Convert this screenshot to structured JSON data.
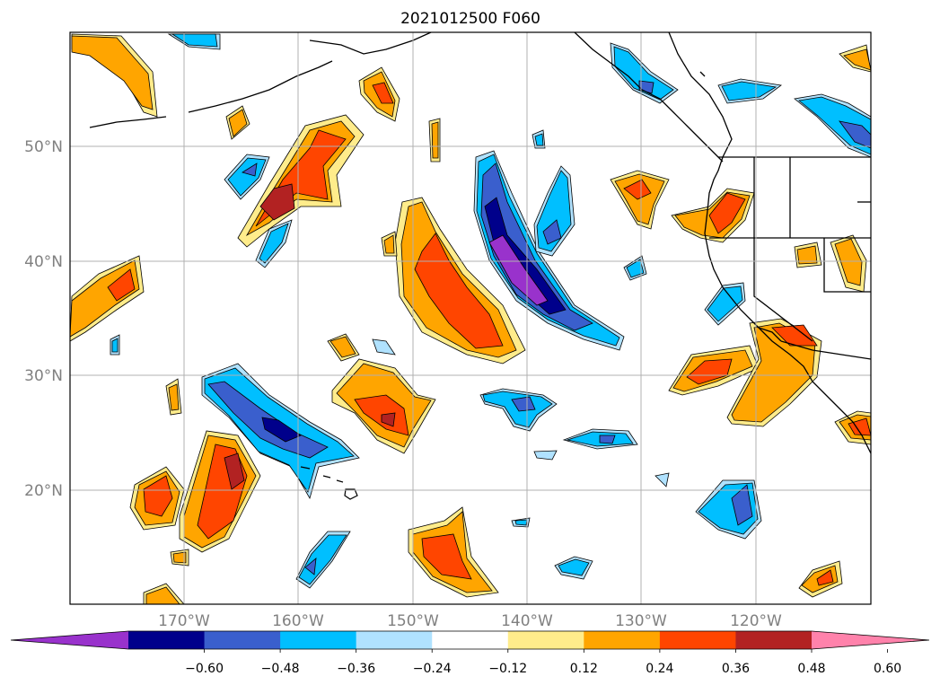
{
  "map": {
    "title": "2021012500 F060",
    "lon_labels": [
      "170°W",
      "160°W",
      "150°W",
      "140°W",
      "130°W",
      "120°W"
    ],
    "lat_labels": [
      "50°N",
      "40°N",
      "30°N",
      "20°N"
    ],
    "extent": {
      "lon": [
        -180,
        -110
      ],
      "lat": [
        10,
        60
      ]
    },
    "grid": true
  },
  "colorbar": {
    "labels": [
      "−0.60",
      "−0.48",
      "−0.36",
      "−0.24",
      "−0.12",
      "0.12",
      "0.24",
      "0.36",
      "0.48",
      "0.60"
    ],
    "colors": [
      "#9932cc",
      "#00008b",
      "#3a5fcd",
      "#00bfff",
      "#b0e2ff",
      "#ffffff",
      "#ffec8b",
      "#ffa500",
      "#ff4500",
      "#b22222",
      "#ff82ab"
    ],
    "extend": "both"
  }
}
